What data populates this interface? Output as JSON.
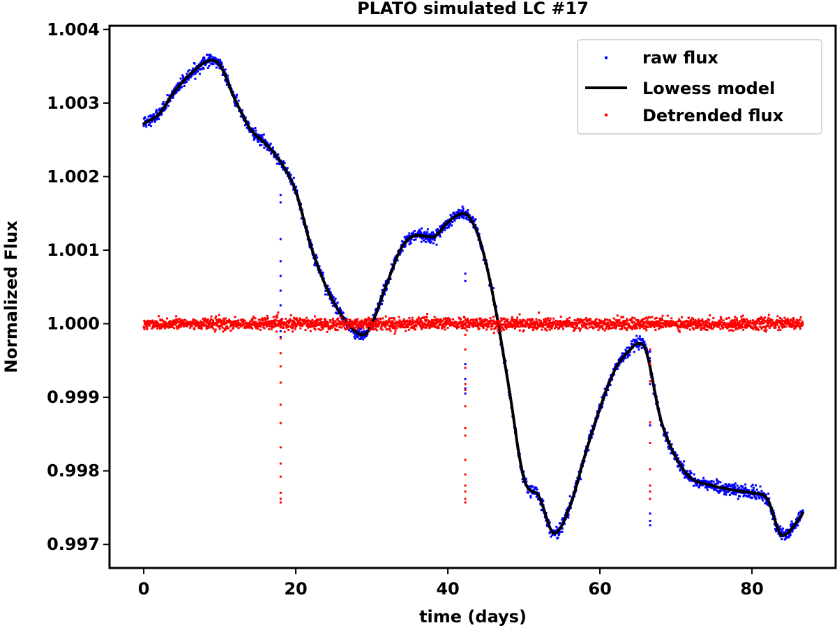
{
  "chart_data": {
    "type": "scatter",
    "title": "PLATO simulated LC #17",
    "xlabel": "time (days)",
    "ylabel": "Normalized Flux",
    "xlim": [
      -4.5,
      91
    ],
    "ylim": [
      0.99668,
      1.00405
    ],
    "xticks": [
      0,
      20,
      40,
      60,
      80
    ],
    "xtick_labels": [
      "0",
      "20",
      "40",
      "60",
      "80"
    ],
    "yticks": [
      0.997,
      0.998,
      0.999,
      1.0,
      1.001,
      1.002,
      1.003,
      1.004
    ],
    "ytick_labels": [
      "0.997",
      "0.998",
      "0.999",
      "1.000",
      "1.001",
      "1.002",
      "1.003",
      "1.004"
    ],
    "grid": false,
    "legend_position": "top-right",
    "time_range": [
      0,
      86.7
    ],
    "series": [
      {
        "name": "raw flux",
        "kind": "points",
        "color": "#0000ff",
        "noise_sigma": 4e-05
      },
      {
        "name": "Lowess model",
        "kind": "line",
        "color": "#000000",
        "x": [
          0,
          2,
          4,
          6,
          8,
          9,
          10,
          12,
          14,
          16,
          18,
          20,
          22,
          24,
          26,
          28,
          29,
          30,
          32,
          34,
          36,
          38,
          40,
          42,
          44,
          46,
          48,
          50,
          52,
          54,
          56,
          58,
          60,
          62,
          64,
          65,
          66,
          68,
          70,
          72,
          74,
          76,
          78,
          80,
          82,
          84,
          86,
          86.7
        ],
        "y": [
          1.00272,
          1.00285,
          1.00315,
          1.00338,
          1.00355,
          1.00358,
          1.00352,
          1.00305,
          1.00265,
          1.00245,
          1.0022,
          1.0018,
          1.00105,
          1.0005,
          1.00012,
          0.99988,
          0.99985,
          1.0,
          1.00055,
          1.00105,
          1.0012,
          1.00118,
          1.00138,
          1.0015,
          1.0012,
          1.00035,
          0.99915,
          0.9979,
          0.99765,
          0.99715,
          0.9975,
          0.9982,
          0.99885,
          0.99938,
          0.99965,
          0.99973,
          0.99965,
          0.9987,
          0.99818,
          0.9979,
          0.99782,
          0.99777,
          0.99773,
          0.9977,
          0.99762,
          0.99712,
          0.99732,
          0.99743
        ]
      },
      {
        "name": "Detrended flux",
        "kind": "points",
        "color": "#ff0000",
        "center": 1.0,
        "noise_sigma": 4e-05
      }
    ],
    "transits": [
      {
        "time": 18.0,
        "raw_flux": [
          1.00175,
          1.00165,
          1.00115,
          1.00085,
          1.00065,
          1.00045,
          1.00025,
          1.00005,
          0.9999,
          0.99982
        ],
        "detrended_flux": [
          0.99995,
          0.9998,
          0.9996,
          0.99942,
          0.9992,
          0.9989,
          0.99865,
          0.99832,
          0.9981,
          0.99792,
          0.9977,
          0.99762,
          0.99757
        ]
      },
      {
        "time": 42.3,
        "raw_flux": [
          1.00068,
          1.00058,
          0.99945,
          0.99925,
          0.99912,
          0.99905
        ],
        "detrended_flux": [
          0.99985,
          0.99965,
          0.9994,
          0.99918,
          0.9991,
          0.99888,
          0.99858,
          0.99848,
          0.99815,
          0.99795,
          0.9978,
          0.99772,
          0.99762,
          0.99757
        ]
      },
      {
        "time": 66.6,
        "raw_flux": [
          0.99962,
          0.99942,
          0.99918,
          0.99862,
          0.99838,
          0.99742,
          0.99732,
          0.99726
        ],
        "detrended_flux": [
          0.99965,
          0.99945,
          0.99922,
          0.99866,
          0.99838,
          0.99802,
          0.9978,
          0.99772,
          0.99762
        ]
      }
    ]
  }
}
